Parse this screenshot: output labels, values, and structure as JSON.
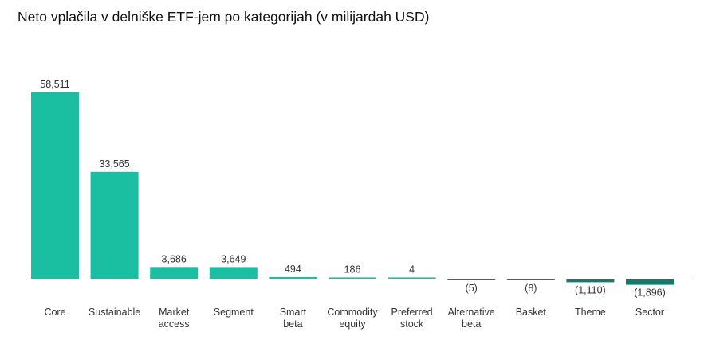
{
  "chart_data": {
    "type": "bar",
    "title": "Neto vplačila v delniške ETF-jem po kategorijah (v milijardah USD)",
    "xlabel": "",
    "ylabel": "",
    "grid": false,
    "legend": "none",
    "categories": [
      [
        "Core"
      ],
      [
        "Sustainable"
      ],
      [
        "Market",
        "access"
      ],
      [
        "Segment"
      ],
      [
        "Smart",
        "beta"
      ],
      [
        "Commodity",
        "equity"
      ],
      [
        "Preferred",
        "stock"
      ],
      [
        "Alternative",
        "beta"
      ],
      [
        "Basket"
      ],
      [
        "Theme"
      ],
      [
        "Sector"
      ]
    ],
    "values": [
      58511,
      33565,
      3686,
      3649,
      494,
      186,
      4,
      -5,
      -8,
      -1110,
      -1896
    ],
    "value_labels": [
      "58,511",
      "33,565",
      "3,686",
      "3,649",
      "494",
      "186",
      "4",
      "(5)",
      "(8)",
      "(1,110)",
      "(1,896)"
    ],
    "colors": {
      "positive": "#19bfa0",
      "negative": "#127c6c",
      "axis": "#9a9a9a"
    }
  }
}
